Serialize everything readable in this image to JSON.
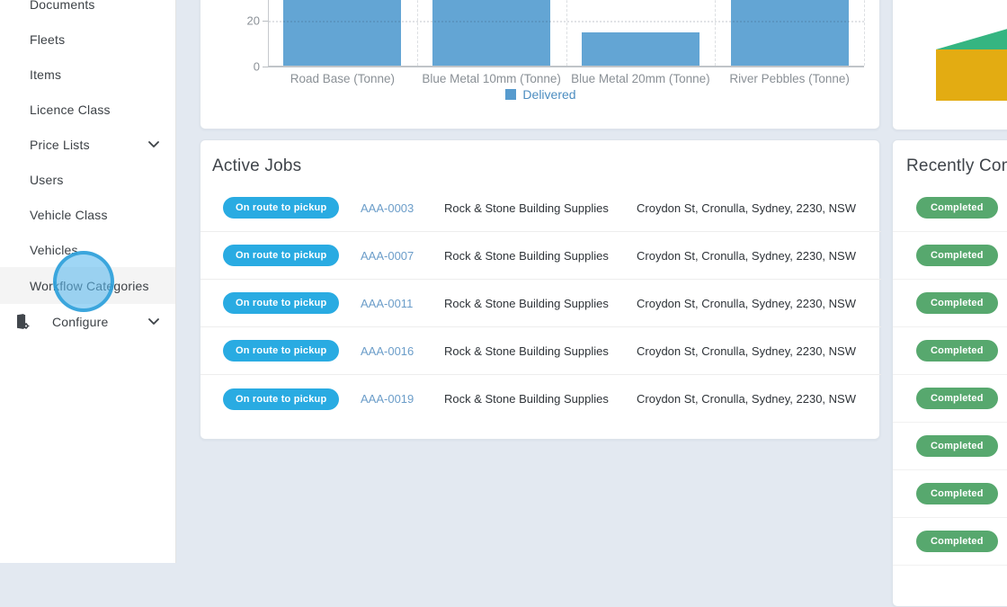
{
  "sidebar": {
    "items": [
      {
        "label": "Documents"
      },
      {
        "label": "Fleets"
      },
      {
        "label": "Items"
      },
      {
        "label": "Licence Class"
      },
      {
        "label": "Price Lists",
        "chevron": true
      },
      {
        "label": "Users"
      },
      {
        "label": "Vehicle Class"
      },
      {
        "label": "Vehicles"
      },
      {
        "label": "Workflow Categories",
        "active": true
      },
      {
        "label": "Configure",
        "chevron": true,
        "icon": "configure-icon"
      }
    ]
  },
  "chart_data": [
    {
      "type": "bar",
      "title": "",
      "categories": [
        "Road Base (Tonne)",
        "Blue Metal 10mm (Tonne)",
        "Blue Metal 20mm (Tonne)",
        "River Pebbles (Tonne)"
      ],
      "series": [
        {
          "name": "Delivered",
          "values": [
            30,
            30,
            15,
            30
          ]
        }
      ],
      "clipped_at_top": [
        true,
        true,
        false,
        true
      ],
      "yticks_visible": [
        0,
        20
      ],
      "ylim_visible": [
        0,
        28
      ],
      "grid": true,
      "legend_position": "bottom",
      "bar_color": "#63a5d4"
    },
    {
      "type": "pie",
      "visible_slices": [
        {
          "color": "#35b581"
        },
        {
          "color": "#e3ac12"
        }
      ],
      "note_layout": "only left portion of pie visible, cut off at right viewport edge"
    }
  ],
  "active_jobs": {
    "title": "Active Jobs",
    "rows": [
      {
        "status": "On route to pickup",
        "job_id": "AAA-0003",
        "customer": "Rock & Stone Building Supplies",
        "address": "Croydon St, Cronulla, Sydney, 2230, NSW"
      },
      {
        "status": "On route to pickup",
        "job_id": "AAA-0007",
        "customer": "Rock & Stone Building Supplies",
        "address": "Croydon St, Cronulla, Sydney, 2230, NSW"
      },
      {
        "status": "On route to pickup",
        "job_id": "AAA-0011",
        "customer": "Rock & Stone Building Supplies",
        "address": "Croydon St, Cronulla, Sydney, 2230, NSW"
      },
      {
        "status": "On route to pickup",
        "job_id": "AAA-0016",
        "customer": "Rock & Stone Building Supplies",
        "address": "Croydon St, Cronulla, Sydney, 2230, NSW"
      },
      {
        "status": "On route to pickup",
        "job_id": "AAA-0019",
        "customer": "Rock & Stone Building Supplies",
        "address": "Croydon St, Cronulla, Sydney, 2230, NSW"
      }
    ]
  },
  "recently_completed": {
    "title": "Recently Com",
    "badges": [
      "Completed",
      "Completed",
      "Completed",
      "Completed",
      "Completed",
      "Completed",
      "Completed",
      "Completed"
    ]
  },
  "colors": {
    "background": "#e3e9f1",
    "bar_blue": "#63a5d4",
    "status_blue": "#29abe2",
    "status_green": "#57a86e",
    "pie_green": "#35b581",
    "pie_yellow": "#e3ac12",
    "link_blue": "#6b9dc9",
    "click_indicator_blue": "#2a9ed8"
  }
}
